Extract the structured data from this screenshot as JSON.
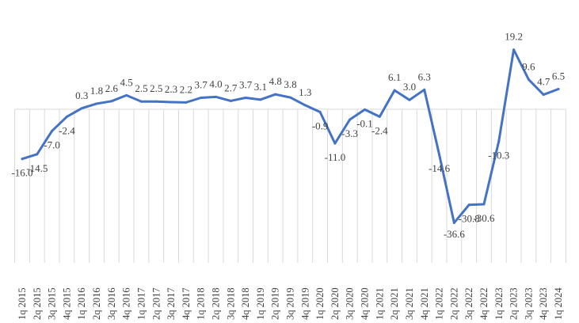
{
  "chart_data": {
    "type": "line",
    "title": "",
    "xlabel": "",
    "ylabel": "",
    "ylim": [
      -40,
      22
    ],
    "grid": "vertical-below-zero",
    "legend": "none",
    "colors": {
      "line": "#4472c4",
      "grid": "#d9d9d9",
      "text": "#404040"
    },
    "categories": [
      "1q 2015",
      "2q 2015",
      "3q 2015",
      "4q 2015",
      "1q 2016",
      "2q 2016",
      "3q 2016",
      "4q 2016",
      "1q 2017",
      "2q 2017",
      "3q 2017",
      "4q 2017",
      "1q 2018",
      "2q 2018",
      "3q 2018",
      "4q 2018",
      "1q 2019",
      "2q 2019",
      "3q 2019",
      "4q 2019",
      "1q 2020",
      "2q 2020",
      "3q 2020",
      "4q 2020",
      "1q 2021",
      "2q 2021",
      "3q 2021",
      "4q 2021",
      "1q 2022",
      "2q 2022",
      "3q 2022",
      "4q 2022",
      "1q 2023",
      "2q 2023",
      "3q 2023",
      "4q 2023",
      "1q 2024"
    ],
    "series": [
      {
        "values": [
          -16.0,
          -14.5,
          -7.0,
          -2.4,
          0.3,
          1.8,
          2.6,
          4.5,
          2.5,
          2.5,
          2.3,
          2.2,
          3.7,
          4.0,
          2.7,
          3.7,
          3.1,
          4.8,
          3.8,
          1.3,
          -0.9,
          -11.0,
          -3.3,
          -0.1,
          -2.4,
          6.1,
          3.0,
          6.3,
          -14.6,
          -36.6,
          -30.8,
          -30.6,
          -10.3,
          19.2,
          9.6,
          4.7,
          6.5
        ],
        "labels": [
          "-16.0",
          "-14.5",
          "-7.0",
          "-2.4",
          "0.3",
          "1.8",
          "2.6",
          "4.5",
          "2.5",
          "2.5",
          "2.3",
          "2.2",
          "3.7",
          "4.0",
          "2.7",
          "3.7",
          "3.1",
          "4.8",
          "3.8",
          "1.3",
          "-0.9",
          "-11.0",
          "-3.3",
          "-0.1",
          "-2.4",
          "6.1",
          "3.0",
          "6.3",
          "-14.6",
          "-36.6",
          "-30.8",
          "-30.6",
          "-10.3",
          "19.2",
          "9.6",
          "4.7",
          "6.5"
        ]
      }
    ]
  }
}
